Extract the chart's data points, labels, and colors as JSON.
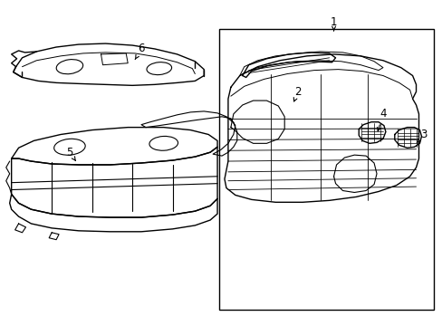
{
  "background_color": "#ffffff",
  "line_color": "#000000",
  "line_width": 1.0,
  "fig_width": 4.89,
  "fig_height": 3.6,
  "dpi": 100,
  "font_size": 8.5
}
